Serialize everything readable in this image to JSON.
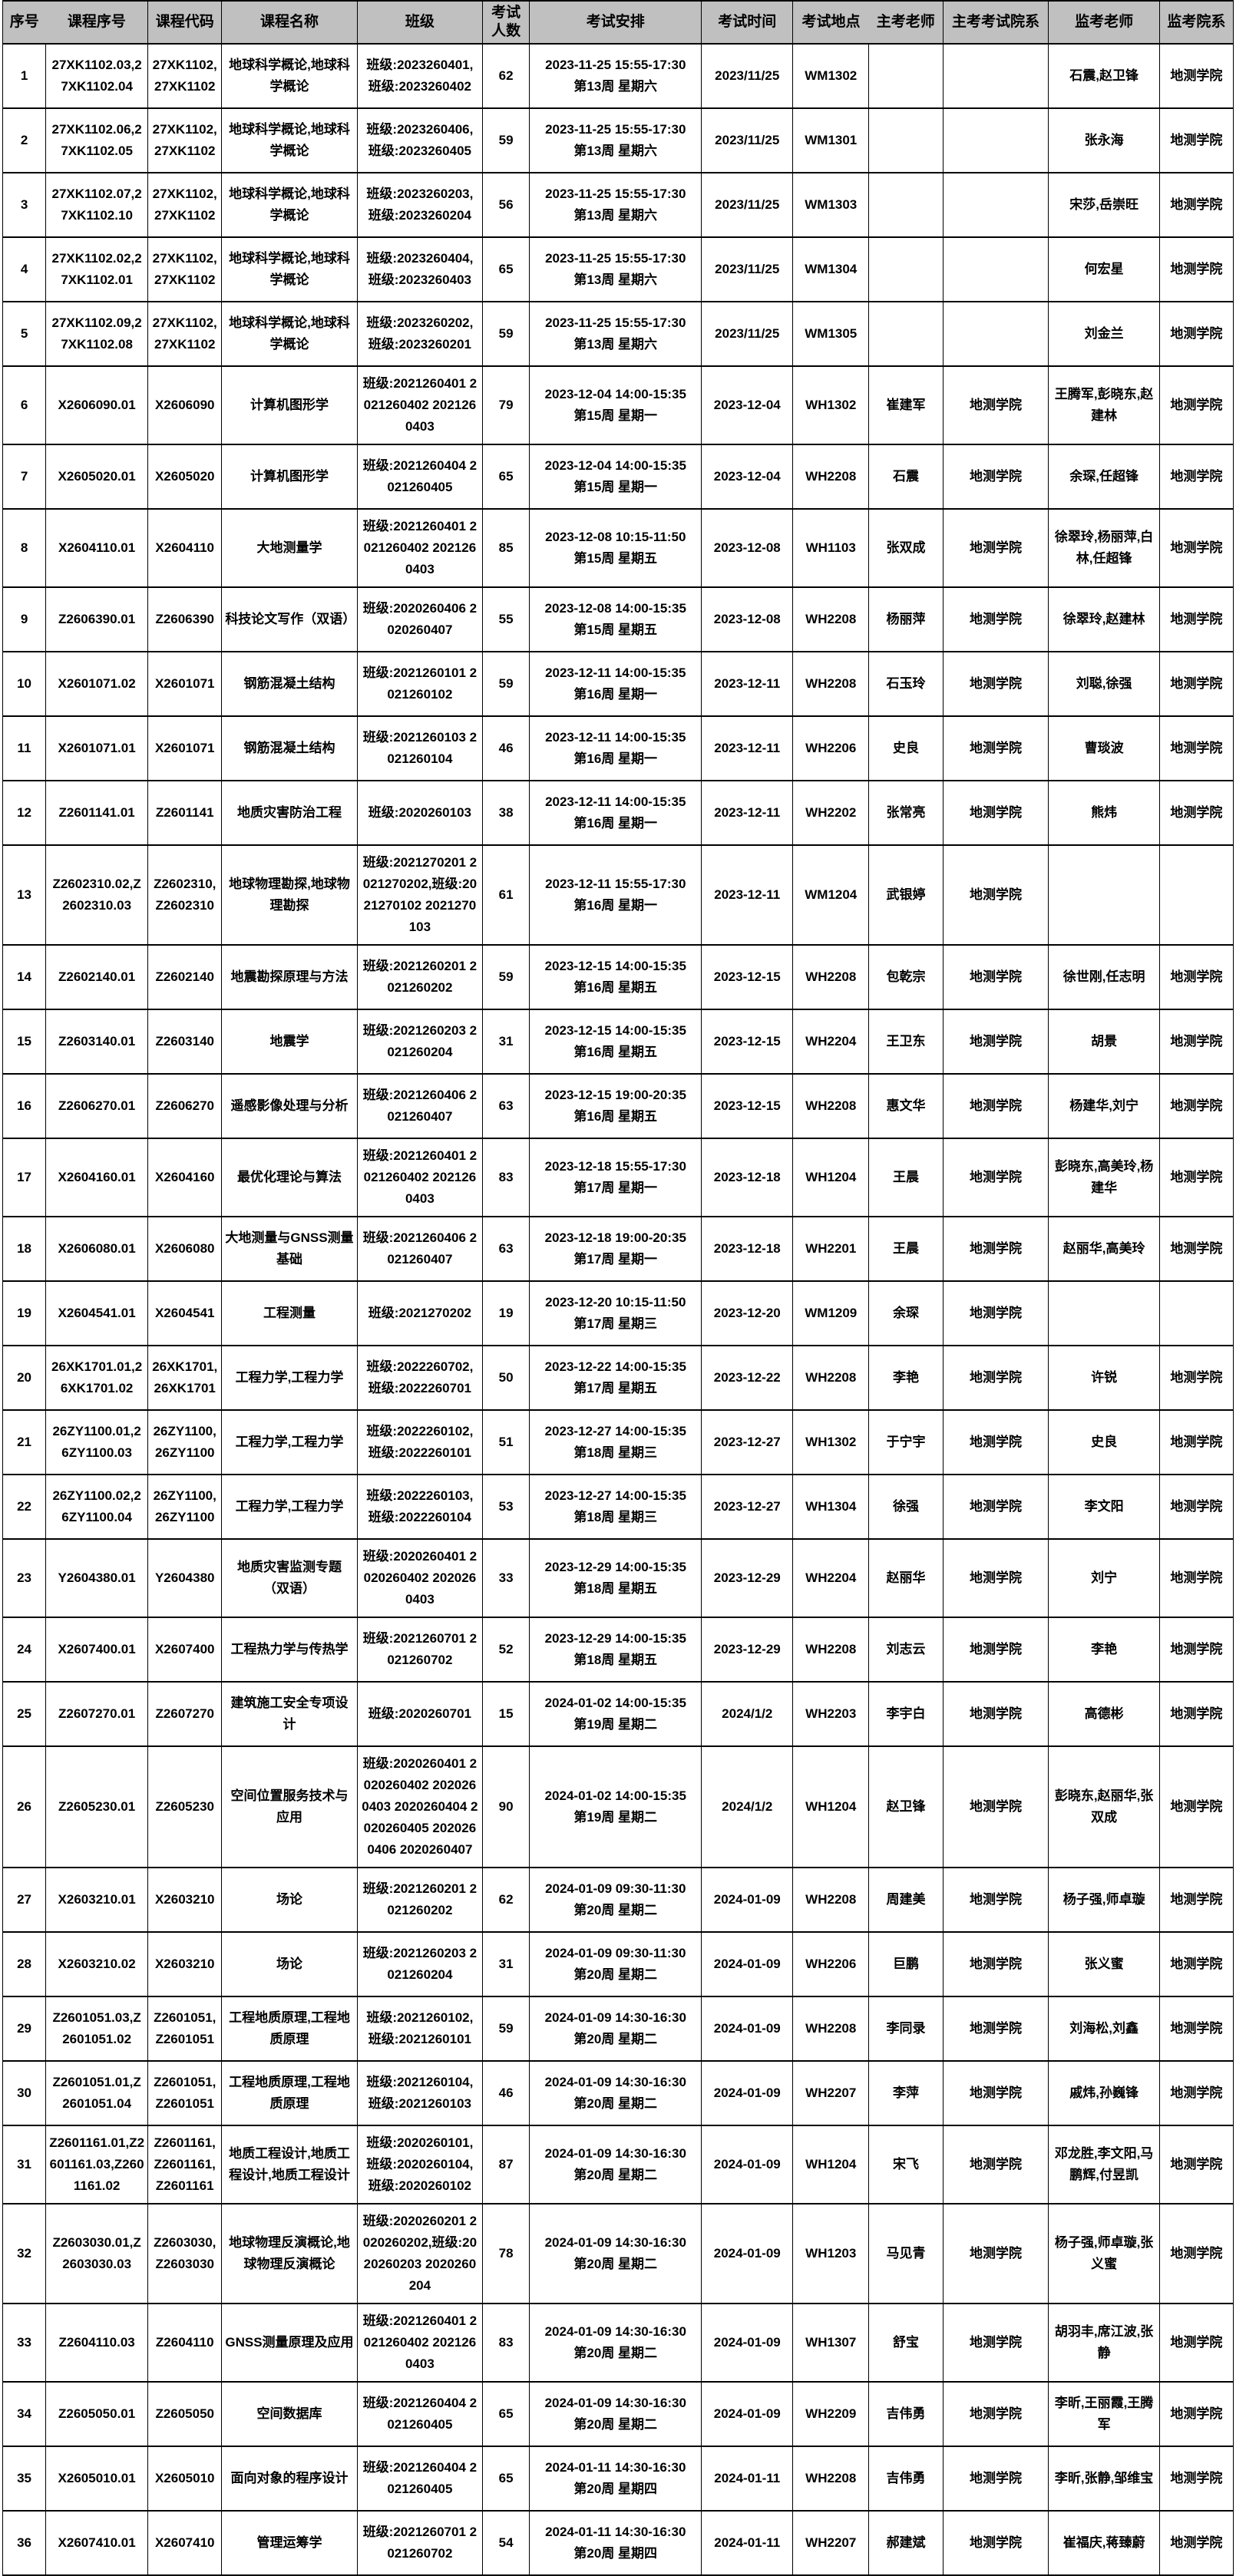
{
  "styles": {
    "header_bg": "#c0c0c0",
    "border_color": "#000000",
    "text_color": "#000000"
  },
  "table": {
    "columns": [
      "序号",
      "课程序号",
      "课程代码",
      "课程名称",
      "班级",
      "考试人数",
      "考试安排",
      "考试时间",
      "考试地点",
      "主考老师",
      "主考考试院系",
      "监考老师",
      "监考院系"
    ],
    "column_keys": [
      "index",
      "course-serial",
      "course-code",
      "course-name",
      "classes",
      "exam-count",
      "exam-schedule",
      "exam-date",
      "exam-room",
      "chief-examiner",
      "chief-examiner-department",
      "invigilators",
      "invigilator-department"
    ],
    "rows": [
      [
        "1",
        "27XK1102.03,27XK1102.04",
        "27XK1102,27XK1102",
        "地球科学概论,地球科学概论",
        "班级:2023260401,班级:2023260402",
        "62",
        "2023-11-25 15:55-17:30\n第13周 星期六",
        "2023/11/25",
        "WM1302",
        "",
        "",
        "石震,赵卫锋",
        "地测学院"
      ],
      [
        "2",
        "27XK1102.06,27XK1102.05",
        "27XK1102,27XK1102",
        "地球科学概论,地球科学概论",
        "班级:2023260406,班级:2023260405",
        "59",
        "2023-11-25 15:55-17:30\n第13周 星期六",
        "2023/11/25",
        "WM1301",
        "",
        "",
        "张永海",
        "地测学院"
      ],
      [
        "3",
        "27XK1102.07,27XK1102.10",
        "27XK1102,27XK1102",
        "地球科学概论,地球科学概论",
        "班级:2023260203,班级:2023260204",
        "56",
        "2023-11-25 15:55-17:30\n第13周 星期六",
        "2023/11/25",
        "WM1303",
        "",
        "",
        "宋莎,岳崇旺",
        "地测学院"
      ],
      [
        "4",
        "27XK1102.02,27XK1102.01",
        "27XK1102,27XK1102",
        "地球科学概论,地球科学概论",
        "班级:2023260404,班级:2023260403",
        "65",
        "2023-11-25 15:55-17:30\n第13周 星期六",
        "2023/11/25",
        "WM1304",
        "",
        "",
        "何宏星",
        "地测学院"
      ],
      [
        "5",
        "27XK1102.09,27XK1102.08",
        "27XK1102,27XK1102",
        "地球科学概论,地球科学概论",
        "班级:2023260202,班级:2023260201",
        "59",
        "2023-11-25 15:55-17:30\n第13周 星期六",
        "2023/11/25",
        "WM1305",
        "",
        "",
        "刘金兰",
        "地测学院"
      ],
      [
        "6",
        "X2606090.01",
        "X2606090",
        "计算机图形学",
        "班级:2021260401 2021260402 2021260403",
        "79",
        "2023-12-04 14:00-15:35\n第15周 星期一",
        "2023-12-04",
        "WH1302",
        "崔建军",
        "地测学院",
        "王腾军,彭晓东,赵建林",
        "地测学院"
      ],
      [
        "7",
        "X2605020.01",
        "X2605020",
        "计算机图形学",
        "班级:2021260404 2021260405",
        "65",
        "2023-12-04 14:00-15:35\n第15周 星期一",
        "2023-12-04",
        "WH2208",
        "石震",
        "地测学院",
        "余琛,任超锋",
        "地测学院"
      ],
      [
        "8",
        "X2604110.01",
        "X2604110",
        "大地测量学",
        "班级:2021260401 2021260402 2021260403",
        "85",
        "2023-12-08 10:15-11:50\n第15周 星期五",
        "2023-12-08",
        "WH1103",
        "张双成",
        "地测学院",
        "徐翠玲,杨丽萍,白林,任超锋",
        "地测学院"
      ],
      [
        "9",
        "Z2606390.01",
        "Z2606390",
        "科技论文写作（双语）",
        "班级:2020260406 2020260407",
        "55",
        "2023-12-08 14:00-15:35\n第15周 星期五",
        "2023-12-08",
        "WH2208",
        "杨丽萍",
        "地测学院",
        "徐翠玲,赵建林",
        "地测学院"
      ],
      [
        "10",
        "X2601071.02",
        "X2601071",
        "钢筋混凝土结构",
        "班级:2021260101 2021260102",
        "59",
        "2023-12-11 14:00-15:35\n第16周 星期一",
        "2023-12-11",
        "WH2208",
        "石玉玲",
        "地测学院",
        "刘聪,徐强",
        "地测学院"
      ],
      [
        "11",
        "X2601071.01",
        "X2601071",
        "钢筋混凝土结构",
        "班级:2021260103 2021260104",
        "46",
        "2023-12-11 14:00-15:35\n第16周 星期一",
        "2023-12-11",
        "WH2206",
        "史良",
        "地测学院",
        "曹琰波",
        "地测学院"
      ],
      [
        "12",
        "Z2601141.01",
        "Z2601141",
        "地质灾害防治工程",
        "班级:2020260103",
        "38",
        "2023-12-11 14:00-15:35\n第16周 星期一",
        "2023-12-11",
        "WH2202",
        "张常亮",
        "地测学院",
        "熊炜",
        "地测学院"
      ],
      [
        "13",
        "Z2602310.02,Z2602310.03",
        "Z2602310,Z2602310",
        "地球物理勘探,地球物理勘探",
        "班级:2021270201 2021270202,班级:2021270102 2021270103",
        "61",
        "2023-12-11 15:55-17:30\n第16周 星期一",
        "2023-12-11",
        "WM1204",
        "武银婷",
        "地测学院",
        "",
        ""
      ],
      [
        "14",
        "Z2602140.01",
        "Z2602140",
        "地震勘探原理与方法",
        "班级:2021260201 2021260202",
        "59",
        "2023-12-15 14:00-15:35\n第16周 星期五",
        "2023-12-15",
        "WH2208",
        "包乾宗",
        "地测学院",
        "徐世刚,任志明",
        "地测学院"
      ],
      [
        "15",
        "Z2603140.01",
        "Z2603140",
        "地震学",
        "班级:2021260203 2021260204",
        "31",
        "2023-12-15 14:00-15:35\n第16周 星期五",
        "2023-12-15",
        "WH2204",
        "王卫东",
        "地测学院",
        "胡景",
        "地测学院"
      ],
      [
        "16",
        "Z2606270.01",
        "Z2606270",
        "遥感影像处理与分析",
        "班级:2021260406 2021260407",
        "63",
        "2023-12-15 19:00-20:35\n第16周 星期五",
        "2023-12-15",
        "WH2208",
        "惠文华",
        "地测学院",
        "杨建华,刘宁",
        "地测学院"
      ],
      [
        "17",
        "X2604160.01",
        "X2604160",
        "最优化理论与算法",
        "班级:2021260401 2021260402 2021260403",
        "83",
        "2023-12-18 15:55-17:30\n第17周 星期一",
        "2023-12-18",
        "WH1204",
        "王晨",
        "地测学院",
        "彭晓东,高美玲,杨建华",
        "地测学院"
      ],
      [
        "18",
        "X2606080.01",
        "X2606080",
        "大地测量与GNSS测量基础",
        "班级:2021260406 2021260407",
        "63",
        "2023-12-18 19:00-20:35\n第17周 星期一",
        "2023-12-18",
        "WH2201",
        "王晨",
        "地测学院",
        "赵丽华,高美玲",
        "地测学院"
      ],
      [
        "19",
        "X2604541.01",
        "X2604541",
        "工程测量",
        "班级:2021270202",
        "19",
        "2023-12-20 10:15-11:50\n第17周 星期三",
        "2023-12-20",
        "WM1209",
        "余琛",
        "地测学院",
        "",
        ""
      ],
      [
        "20",
        "26XK1701.01,26XK1701.02",
        "26XK1701,26XK1701",
        "工程力学,工程力学",
        "班级:2022260702,班级:2022260701",
        "50",
        "2023-12-22 14:00-15:35\n第17周 星期五",
        "2023-12-22",
        "WH2208",
        "李艳",
        "地测学院",
        "许锐",
        "地测学院"
      ],
      [
        "21",
        "26ZY1100.01,26ZY1100.03",
        "26ZY1100,26ZY1100",
        "工程力学,工程力学",
        "班级:2022260102,班级:2022260101",
        "51",
        "2023-12-27 14:00-15:35\n第18周 星期三",
        "2023-12-27",
        "WH1302",
        "于宁宇",
        "地测学院",
        "史良",
        "地测学院"
      ],
      [
        "22",
        "26ZY1100.02,26ZY1100.04",
        "26ZY1100,26ZY1100",
        "工程力学,工程力学",
        "班级:2022260103,班级:2022260104",
        "53",
        "2023-12-27 14:00-15:35\n第18周 星期三",
        "2023-12-27",
        "WH1304",
        "徐强",
        "地测学院",
        "李文阳",
        "地测学院"
      ],
      [
        "23",
        "Y2604380.01",
        "Y2604380",
        "地质灾害监测专题（双语）",
        "班级:2020260401 2020260402 2020260403",
        "33",
        "2023-12-29 14:00-15:35\n第18周 星期五",
        "2023-12-29",
        "WH2204",
        "赵丽华",
        "地测学院",
        "刘宁",
        "地测学院"
      ],
      [
        "24",
        "X2607400.01",
        "X2607400",
        "工程热力学与传热学",
        "班级:2021260701 2021260702",
        "52",
        "2023-12-29 14:00-15:35\n第18周 星期五",
        "2023-12-29",
        "WH2208",
        "刘志云",
        "地测学院",
        "李艳",
        "地测学院"
      ],
      [
        "25",
        "Z2607270.01",
        "Z2607270",
        "建筑施工安全专项设计",
        "班级:2020260701",
        "15",
        "2024-01-02 14:00-15:35\n第19周 星期二",
        "2024/1/2",
        "WH2203",
        "李宇白",
        "地测学院",
        "高德彬",
        "地测学院"
      ],
      [
        "26",
        "Z2605230.01",
        "Z2605230",
        "空间位置服务技术与应用",
        "班级:2020260401 2020260402 2020260403 2020260404 2020260405 2020260406 2020260407",
        "90",
        "2024-01-02 14:00-15:35\n第19周 星期二",
        "2024/1/2",
        "WH1204",
        "赵卫锋",
        "地测学院",
        "彭晓东,赵丽华,张双成",
        "地测学院"
      ],
      [
        "27",
        "X2603210.01",
        "X2603210",
        "场论",
        "班级:2021260201 2021260202",
        "62",
        "2024-01-09 09:30-11:30\n第20周 星期二",
        "2024-01-09",
        "WH2208",
        "周建美",
        "地测学院",
        "杨子强,师卓璇",
        "地测学院"
      ],
      [
        "28",
        "X2603210.02",
        "X2603210",
        "场论",
        "班级:2021260203 2021260204",
        "31",
        "2024-01-09 09:30-11:30\n第20周 星期二",
        "2024-01-09",
        "WH2206",
        "巨鹏",
        "地测学院",
        "张义蜜",
        "地测学院"
      ],
      [
        "29",
        "Z2601051.03,Z2601051.02",
        "Z2601051,Z2601051",
        "工程地质原理,工程地质原理",
        "班级:2021260102,班级:2021260101",
        "59",
        "2024-01-09 14:30-16:30\n第20周 星期二",
        "2024-01-09",
        "WH2208",
        "李同录",
        "地测学院",
        "刘海松,刘鑫",
        "地测学院"
      ],
      [
        "30",
        "Z2601051.01,Z2601051.04",
        "Z2601051,Z2601051",
        "工程地质原理,工程地质原理",
        "班级:2021260104,班级:2021260103",
        "46",
        "2024-01-09 14:30-16:30\n第20周 星期二",
        "2024-01-09",
        "WH2207",
        "李萍",
        "地测学院",
        "戚炜,孙巍锋",
        "地测学院"
      ],
      [
        "31",
        "Z2601161.01,Z2601161.03,Z2601161.02",
        "Z2601161,Z2601161,Z2601161",
        "地质工程设计,地质工程设计,地质工程设计",
        "班级:2020260101,班级:2020260104,班级:2020260102",
        "87",
        "2024-01-09 14:30-16:30\n第20周 星期二",
        "2024-01-09",
        "WH1204",
        "宋飞",
        "地测学院",
        "邓龙胜,李文阳,马鹏辉,付昱凯",
        "地测学院"
      ],
      [
        "32",
        "Z2603030.01,Z2603030.03",
        "Z2603030,Z2603030",
        "地球物理反演概论,地球物理反演概论",
        "班级:2020260201 2020260202,班级:2020260203 2020260204",
        "78",
        "2024-01-09 14:30-16:30\n第20周 星期二",
        "2024-01-09",
        "WH1203",
        "马见青",
        "地测学院",
        "杨子强,师卓璇,张义蜜",
        "地测学院"
      ],
      [
        "33",
        "Z2604110.03",
        "Z2604110",
        "GNSS测量原理及应用",
        "班级:2021260401 2021260402 2021260403",
        "83",
        "2024-01-09 14:30-16:30\n第20周 星期二",
        "2024-01-09",
        "WH1307",
        "舒宝",
        "地测学院",
        "胡羽丰,席江波,张静",
        "地测学院"
      ],
      [
        "34",
        "Z2605050.01",
        "Z2605050",
        "空间数据库",
        "班级:2021260404 2021260405",
        "65",
        "2024-01-09 14:30-16:30\n第20周 星期二",
        "2024-01-09",
        "WH2209",
        "吉伟勇",
        "地测学院",
        "李昕,王丽霞,王腾军",
        "地测学院"
      ],
      [
        "35",
        "X2605010.01",
        "X2605010",
        "面向对象的程序设计",
        "班级:2021260404 2021260405",
        "65",
        "2024-01-11 14:30-16:30\n第20周 星期四",
        "2024-01-11",
        "WH2208",
        "吉伟勇",
        "地测学院",
        "李昕,张静,邹维宝",
        "地测学院"
      ],
      [
        "36",
        "X2607410.01",
        "X2607410",
        "管理运筹学",
        "班级:2021260701 2021260702",
        "54",
        "2024-01-11 14:30-16:30\n第20周 星期四",
        "2024-01-11",
        "WH2207",
        "郝建斌",
        "地测学院",
        "崔福庆,蒋臻蔚",
        "地测学院"
      ]
    ]
  }
}
